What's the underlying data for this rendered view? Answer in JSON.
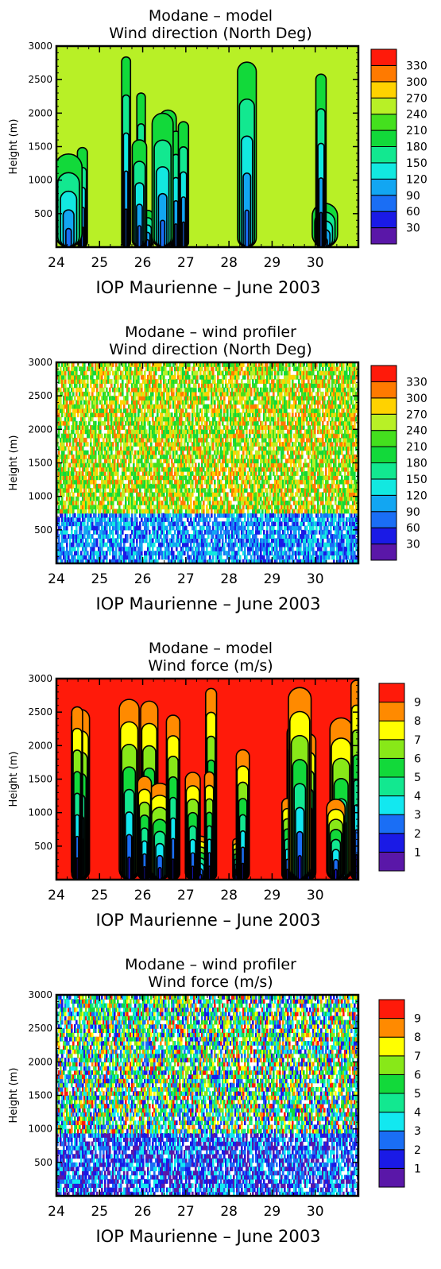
{
  "chart_data": [
    {
      "type": "heatmap",
      "title": "Modane – model",
      "subtitle": "Wind direction (North Deg)",
      "ylabel": "Height (m)",
      "xlabel": "IOP Maurienne – June 2003",
      "xlim": [
        24,
        31
      ],
      "ylim": [
        0,
        3000
      ],
      "x_ticks": [
        "24",
        "25",
        "26",
        "27",
        "28",
        "29",
        "30"
      ],
      "y_ticks": [
        "500",
        "1000",
        "1500",
        "2000",
        "2500",
        "3000"
      ],
      "legend_title": "",
      "legend": {
        "placement": "right",
        "levels": [
          "30",
          "60",
          "90",
          "120",
          "150",
          "180",
          "210",
          "240",
          "270",
          "300",
          "330"
        ],
        "colors": [
          "#5a17a8",
          "#1a1ae6",
          "#1a6ef5",
          "#12a6f2",
          "#12e8e0",
          "#12e890",
          "#12d93a",
          "#44e01e",
          "#b8f026",
          "#ffd200",
          "#ff7a00",
          "#ff1a0a"
        ]
      },
      "contour_lines": true,
      "style": "smooth"
    },
    {
      "type": "heatmap",
      "title": "Modane – wind profiler",
      "subtitle": "Wind direction (North Deg)",
      "ylabel": "Height (m)",
      "xlabel": "IOP Maurienne – June 2003",
      "xlim": [
        24,
        31
      ],
      "ylim": [
        0,
        3000
      ],
      "x_ticks": [
        "24",
        "25",
        "26",
        "27",
        "28",
        "29",
        "30"
      ],
      "y_ticks": [
        "500",
        "1000",
        "1500",
        "2000",
        "2500",
        "3000"
      ],
      "legend": {
        "placement": "right",
        "levels": [
          "30",
          "60",
          "90",
          "120",
          "150",
          "180",
          "210",
          "240",
          "270",
          "300",
          "330"
        ],
        "colors": [
          "#5a17a8",
          "#1a1ae6",
          "#1a6ef5",
          "#12a6f2",
          "#12e8e0",
          "#12e890",
          "#12d93a",
          "#44e01e",
          "#b8f026",
          "#ffd200",
          "#ff7a00",
          "#ff1a0a"
        ]
      },
      "contour_lines": false,
      "style": "noisy"
    },
    {
      "type": "heatmap",
      "title": "Modane – model",
      "subtitle": "Wind force (m/s)",
      "ylabel": "Height (m)",
      "xlabel": "IOP Maurienne – June 2003",
      "xlim": [
        24,
        31
      ],
      "ylim": [
        0,
        3000
      ],
      "x_ticks": [
        "24",
        "25",
        "26",
        "27",
        "28",
        "29",
        "30"
      ],
      "y_ticks": [
        "500",
        "1000",
        "1500",
        "2000",
        "2500",
        "3000"
      ],
      "legend": {
        "placement": "right",
        "levels": [
          "1",
          "2",
          "3",
          "4",
          "5",
          "6",
          "7",
          "8",
          "9"
        ],
        "colors": [
          "#5a17a8",
          "#1a1ae6",
          "#1a6ef5",
          "#12e8f0",
          "#12e890",
          "#12d93a",
          "#88e818",
          "#ffff00",
          "#ff8a00",
          "#ff1a0a"
        ]
      },
      "contour_lines": true,
      "style": "smooth"
    },
    {
      "type": "heatmap",
      "title": "Modane – wind profiler",
      "subtitle": "Wind force (m/s)",
      "ylabel": "Height (m)",
      "xlabel": "IOP Maurienne – June 2003",
      "xlim": [
        24,
        31
      ],
      "ylim": [
        0,
        3000
      ],
      "x_ticks": [
        "24",
        "25",
        "26",
        "27",
        "28",
        "29",
        "30"
      ],
      "y_ticks": [
        "500",
        "1000",
        "1500",
        "2000",
        "2500",
        "3000"
      ],
      "legend": {
        "placement": "right",
        "levels": [
          "1",
          "2",
          "3",
          "4",
          "5",
          "6",
          "7",
          "8",
          "9"
        ],
        "colors": [
          "#5a17a8",
          "#1a1ae6",
          "#1a6ef5",
          "#12e8f0",
          "#12e890",
          "#12d93a",
          "#88e818",
          "#ffff00",
          "#ff8a00",
          "#ff1a0a"
        ]
      },
      "contour_lines": false,
      "style": "noisy"
    }
  ]
}
